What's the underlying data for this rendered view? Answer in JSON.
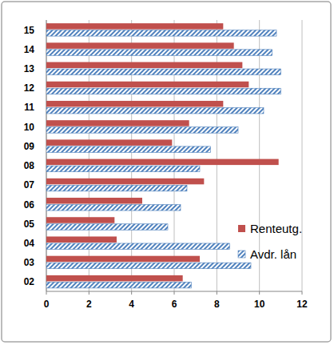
{
  "chart_data": {
    "type": "bar",
    "orientation": "horizontal",
    "categories": [
      "02",
      "03",
      "04",
      "05",
      "06",
      "07",
      "08",
      "09",
      "10",
      "11",
      "12",
      "13",
      "14",
      "15"
    ],
    "series": [
      {
        "name": "Renteutg.",
        "color": "#c0504d",
        "values": [
          6.4,
          7.2,
          3.3,
          3.2,
          4.5,
          7.4,
          10.9,
          5.9,
          6.7,
          8.3,
          9.5,
          9.2,
          8.8,
          8.3
        ]
      },
      {
        "name": "Avdr. lån",
        "color": "#4f81bd",
        "values": [
          6.8,
          9.6,
          8.6,
          5.7,
          6.3,
          6.6,
          7.2,
          7.7,
          9.0,
          10.2,
          11.0,
          11.0,
          10.6,
          10.8
        ]
      }
    ],
    "xlim": [
      0,
      12
    ],
    "xticks": [
      0,
      2,
      4,
      6,
      8,
      10,
      12
    ],
    "grid": true,
    "legend": "right"
  }
}
